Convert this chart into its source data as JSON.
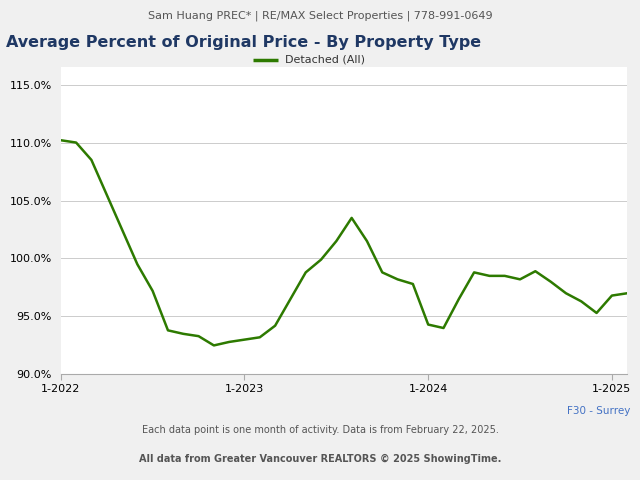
{
  "header_text": "Sam Huang PREC* | RE/MAX Select Properties | 778-991-0649",
  "title": "Average Percent of Original Price - By Property Type",
  "legend_label": "Detached (All)",
  "legend_color": "#2d7a00",
  "line_color": "#2d7a00",
  "line_width": 1.8,
  "footer_left": "F30 - Surrey",
  "footer_center": "Each data point is one month of activity. Data is from February 22, 2025.",
  "footer_bottom": "All data from Greater Vancouver REALTORS © 2025 ShowingTime.",
  "ylim": [
    90.0,
    116.5
  ],
  "yticks": [
    90.0,
    95.0,
    100.0,
    105.0,
    110.0,
    115.0
  ],
  "background_color": "#f0f0f0",
  "plot_bg_color": "#ffffff",
  "grid_color": "#cccccc",
  "title_color": "#1f3864",
  "header_color": "#555555",
  "footer_color_left": "#4472c4",
  "footer_color_center": "#555555",
  "values": [
    110.2,
    110.0,
    108.5,
    105.5,
    102.5,
    99.5,
    97.2,
    93.8,
    93.5,
    93.3,
    92.5,
    92.8,
    93.0,
    93.2,
    94.2,
    96.5,
    98.8,
    99.9,
    101.5,
    103.5,
    101.5,
    98.8,
    98.2,
    97.8,
    94.3,
    94.0,
    96.5,
    98.8,
    98.5,
    98.5,
    98.2,
    98.9,
    98.0,
    97.0,
    96.3,
    95.3,
    96.8,
    97.0
  ],
  "xtick_positions": [
    0,
    12,
    24,
    36
  ],
  "xtick_labels": [
    "1-2022",
    "1-2023",
    "1-2024",
    "1-2025"
  ]
}
